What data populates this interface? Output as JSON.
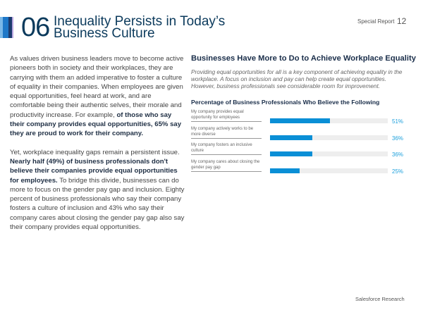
{
  "header": {
    "number": "06",
    "title_line1": "Inequality Persists in Today’s",
    "title_line2": "Business Culture",
    "section": "Special Report",
    "page": "12"
  },
  "body": {
    "p1": "As values driven business leaders move to become active pioneers both in society and their workplaces, they are carrying with them an added imperative to foster a culture of equality in their companies. When employees are given equal opportunities, feel heard at work, and are comfortable being their authentic selves, their morale and productivity increase. For example, ",
    "p1_bold": "of those who say their company provides equal opportunities, 65% say they are proud to work for their company.",
    "p2a": "Yet, workplace inequality gaps remain a persistent issue. ",
    "p2_bold": "Nearly half (49%) of business professionals don't believe their companies provide equal opportunities for employees.",
    "p2b": " To bridge this divide, businesses can do more to focus on the gender pay gap and inclusion. Eighty percent of business professionals who say their company fosters a culture of inclusion and 43% who say their company cares about closing the gender pay gap also say their company provides equal opportunities."
  },
  "right": {
    "heading": "Businesses Have More to Do to Achieve Workplace Equality",
    "intro": "Providing equal opportunities for all is a key component of achieving equality in the workplace. A focus on inclusion and pay can help create equal opportunities. However, business professionals see considerable room for improvement."
  },
  "chart_data": {
    "type": "bar",
    "title": "Percentage of Business Professionals Who Believe the Following",
    "categories": [
      "My company provides equal opportunity for employees",
      "My company actively works to be more diverse",
      "My company fosters an inclusive culture",
      "My company cares about closing the gender pay gap"
    ],
    "values": [
      51,
      36,
      36,
      25
    ],
    "labels": [
      "51%",
      "36%",
      "36%",
      "25%"
    ],
    "ylim": [
      0,
      100
    ],
    "color": "#0a8fd6"
  },
  "footer": "Salesforce Research"
}
